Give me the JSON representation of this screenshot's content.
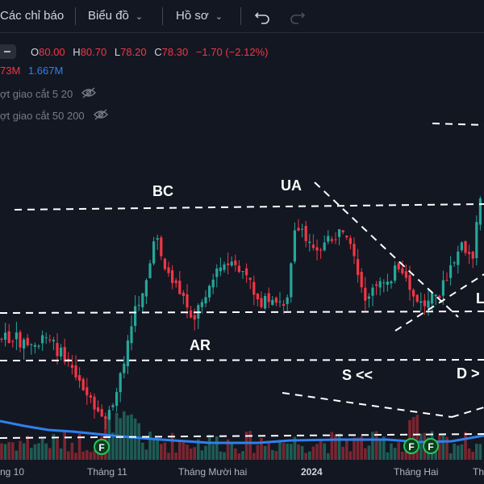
{
  "toolbar": {
    "indicators_label": "Các chỉ báo",
    "chart_label": "Biểu đồ",
    "profile_label": "Hồ sơ",
    "undo_icon": "undo-icon",
    "redo_icon": "redo-icon"
  },
  "legend": {
    "o_label": "O",
    "o_value": "80.00",
    "h_label": "H",
    "h_value": "80.70",
    "l_label": "L",
    "l_value": "78.20",
    "c_label": "C",
    "c_value": "78.30",
    "change": "−1.70 (−2.12%)",
    "volume_value_1": "73M",
    "volume_value_2": "1.667M",
    "indicator_1": "ợt giao cắt 5 20",
    "indicator_2": "ợt giao cắt 50 200"
  },
  "colors": {
    "up": "#26a69a",
    "down": "#f23645",
    "ma": "#2f80ed",
    "background": "#131722",
    "annotation": "#ffffff",
    "vol_ma_text": "#2f80ed"
  },
  "chart_data": {
    "type": "candlestick",
    "x_ticks": [
      "ng 10",
      "Tháng 11",
      "Tháng Mười hai",
      "2024",
      "Tháng Hai",
      "Th"
    ],
    "annotations": [
      "BC",
      "UA",
      "AR",
      "S <<",
      "D >",
      "L"
    ],
    "event_markers": [
      "F",
      "F",
      "F"
    ],
    "last_bar": {
      "open": 80.0,
      "high": 80.7,
      "low": 78.2,
      "close": 78.3,
      "change": -1.7,
      "change_pct": -2.12
    }
  }
}
